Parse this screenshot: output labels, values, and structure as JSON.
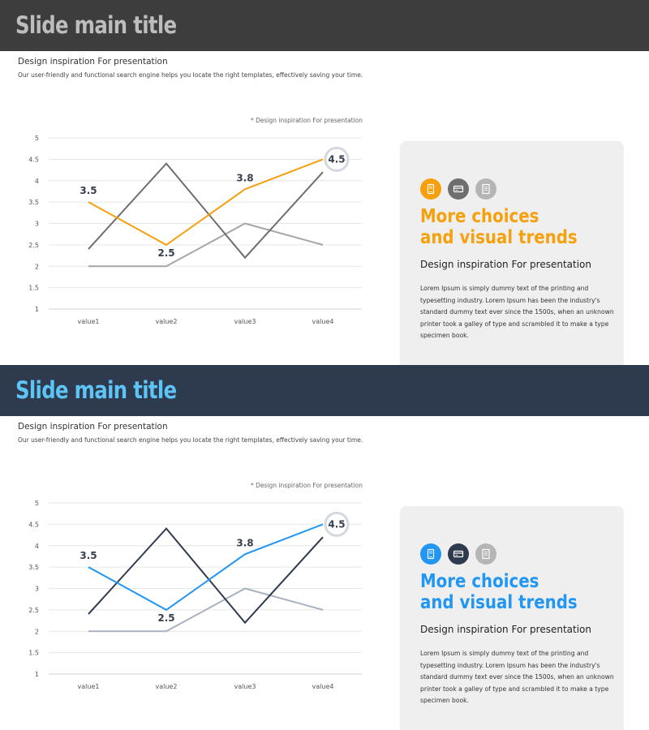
{
  "slides": [
    {
      "title": "Slide main title",
      "colors": {
        "title_bar_bg": "#3d3d3d",
        "title_text": "#bdbdbd",
        "accent": "#f5a00c",
        "series": [
          "#f5a00c",
          "#6e6e6e",
          "#a6a6a6"
        ],
        "icons": [
          "#f5a00c",
          "#6e6e6e",
          "#b5b5b5"
        ]
      },
      "subtitle": "Design inspiration For presentation",
      "description": "Our user-friendly and functional search engine helps you locate the right templates, effectively saving your time.",
      "chart_note": "* Design inspiration For presentation",
      "panel": {
        "heading_line1": "More choices",
        "heading_line2": "and visual trends",
        "subheading": "Design inspiration For presentation",
        "body": "Lorem Ipsum is simply dummy text of the printing and typesetting industry. Lorem Ipsum has been the industry's standard dummy text ever since the 1500s, when an unknown printer took a galley of type and scrambled it to make a type specimen book.",
        "icons": [
          "mobile-icon",
          "credit-card-icon",
          "document-icon"
        ]
      }
    },
    {
      "title": "Slide main title",
      "colors": {
        "title_bar_bg": "#2e3a4e",
        "title_text": "#5ec3f5",
        "accent": "#2196f3",
        "series": [
          "#2196f3",
          "#2e3a4e",
          "#a8b2c1"
        ],
        "icons": [
          "#2196f3",
          "#2e3a4e",
          "#b5b5b5"
        ]
      },
      "subtitle": "Design inspiration For presentation",
      "description": "Our user-friendly and functional search engine helps you locate the right templates, effectively saving your time.",
      "chart_note": "* Design inspiration For presentation",
      "panel": {
        "heading_line1": "More choices",
        "heading_line2": "and visual trends",
        "subheading": "Design inspiration For presentation",
        "body": "Lorem Ipsum is simply dummy text of the printing and typesetting industry. Lorem Ipsum has been the industry's standard dummy text ever since the 1500s, when an unknown printer took a galley of type and scrambled it to make a type specimen book.",
        "icons": [
          "mobile-icon",
          "credit-card-icon",
          "document-icon"
        ]
      }
    }
  ],
  "chart_data": [
    {
      "type": "line",
      "categories": [
        "value1",
        "value2",
        "value3",
        "value4"
      ],
      "series": [
        {
          "values": [
            3.5,
            2.5,
            3.8,
            4.5
          ]
        },
        {
          "values": [
            2.4,
            4.4,
            2.2,
            4.2
          ]
        },
        {
          "values": [
            2.0,
            2.0,
            3.0,
            2.5
          ]
        }
      ],
      "data_labels": [
        "3.5",
        "2.5",
        "3.8",
        "4.5"
      ],
      "ylim": [
        1,
        5
      ],
      "yticks": [
        "1",
        "1.5",
        "2",
        "2.5",
        "3",
        "3.5",
        "4",
        "4.5",
        "5"
      ],
      "grid": true,
      "legend": "none"
    },
    {
      "type": "line",
      "categories": [
        "value1",
        "value2",
        "value3",
        "value4"
      ],
      "series": [
        {
          "values": [
            3.5,
            2.5,
            3.8,
            4.5
          ]
        },
        {
          "values": [
            2.4,
            4.4,
            2.2,
            4.2
          ]
        },
        {
          "values": [
            2.0,
            2.0,
            3.0,
            2.5
          ]
        }
      ],
      "data_labels": [
        "3.5",
        "2.5",
        "3.8",
        "4.5"
      ],
      "ylim": [
        1,
        5
      ],
      "yticks": [
        "1",
        "1.5",
        "2",
        "2.5",
        "3",
        "3.5",
        "4",
        "4.5",
        "5"
      ],
      "grid": true,
      "legend": "none"
    }
  ]
}
